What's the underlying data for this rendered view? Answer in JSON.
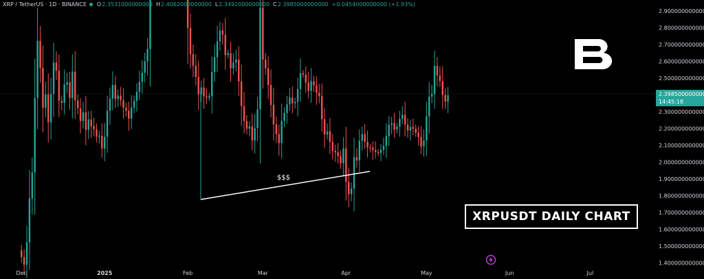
{
  "header": {
    "symbol": "XRP / TetherUS · 1D · BINANCE",
    "open_label": "O",
    "open": "2.3531000000000",
    "high_label": "H",
    "high": "2.4062000000000",
    "low_label": "L",
    "low": "2.3492000000000",
    "close_label": "C",
    "close": "2.3985000000000",
    "change": "+0.0454000000000 (+1.93%)"
  },
  "price_tag": {
    "price": "2.3985000000000",
    "countdown": "14:45:18"
  },
  "annotations": {
    "title": "XRPUSDT DAILY CHART",
    "liquidity_label": "$$$"
  },
  "colors": {
    "up": "#26a69a",
    "down": "#ef5350",
    "background": "#000000",
    "axis_text": "#d1d4dc",
    "annotation": "#ffffff",
    "lightning": "#e040fb"
  },
  "icons": [
    "logo-b-icon",
    "lightning-icon"
  ],
  "chart_data": {
    "type": "candlestick",
    "title": "",
    "xlabel": "",
    "ylabel": "",
    "grid": false,
    "y_ticks": [
      "2.9000000000000",
      "2.8000000000000",
      "2.7000000000000",
      "2.6000000000000",
      "2.5000000000000",
      "2.4000000000000",
      "2.3000000000000",
      "2.2000000000000",
      "2.1000000000000",
      "2.0000000000000",
      "1.9000000000000",
      "1.8000000000000",
      "1.7000000000000",
      "1.6000000000000",
      "1.5000000000000",
      "1.4000000000000"
    ],
    "y_tick_values": [
      2.9,
      2.8,
      2.7,
      2.6,
      2.5,
      2.4,
      2.3,
      2.2,
      2.1,
      2.0,
      1.9,
      1.8,
      1.7,
      1.6,
      1.5,
      1.4
    ],
    "x_ticks": [
      "Dec",
      "2025",
      "Feb",
      "Mar",
      "Apr",
      "May",
      "Jun",
      "Jul"
    ],
    "x_tick_index": [
      0,
      31,
      62,
      90,
      121,
      151,
      182,
      212
    ],
    "ylim": [
      1.365,
      2.965
    ],
    "xlim": [
      -8,
      236
    ],
    "close_series": [
      1.434,
      1.389,
      1.522,
      1.784,
      1.938,
      2.382,
      2.722,
      2.561,
      2.323,
      2.403,
      2.237,
      2.405,
      2.593,
      2.544,
      2.364,
      2.353,
      2.462,
      2.475,
      2.381,
      2.538,
      2.367,
      2.32,
      2.244,
      2.296,
      2.192,
      2.254,
      2.213,
      2.195,
      2.151,
      2.157,
      2.081,
      2.151,
      2.305,
      2.378,
      2.459,
      2.376,
      2.396,
      2.368,
      2.324,
      2.306,
      2.259,
      2.324,
      2.364,
      2.418,
      2.478,
      2.532,
      2.6,
      2.673,
      3.096,
      3.212,
      3.184,
      3.153,
      3.147,
      3.207,
      3.14,
      3.151,
      3.226,
      3.27,
      3.152,
      3.059,
      3.139,
      3.202,
      2.799,
      2.642,
      2.574,
      2.507,
      2.403,
      2.444,
      2.391,
      2.383,
      2.392,
      2.537,
      2.624,
      2.719,
      2.784,
      2.759,
      2.637,
      2.649,
      2.558,
      2.593,
      2.61,
      2.48,
      2.333,
      2.244,
      2.199,
      2.212,
      2.129,
      2.202,
      2.315,
      2.919,
      2.61,
      2.558,
      2.459,
      2.34,
      2.224,
      2.167,
      2.113,
      2.245,
      2.292,
      2.344,
      2.384,
      2.35,
      2.358,
      2.435,
      2.529,
      2.521,
      2.474,
      2.424,
      2.482,
      2.457,
      2.412,
      2.392,
      2.255,
      2.164,
      2.183,
      2.121,
      2.067,
      2.058,
      2.035,
      1.993,
      2.081,
      1.882,
      1.809,
      1.842,
      2.029,
      2.009,
      2.127,
      2.166,
      2.121,
      2.087,
      2.085,
      2.072,
      2.06,
      2.054,
      2.073,
      2.096,
      2.154,
      2.222,
      2.231,
      2.194,
      2.211,
      2.257,
      2.282,
      2.224,
      2.188,
      2.209,
      2.198,
      2.175,
      2.149,
      2.093,
      2.128,
      2.273,
      2.39,
      2.407,
      2.573,
      2.516,
      2.483,
      2.4,
      2.36,
      2.398
    ]
  }
}
